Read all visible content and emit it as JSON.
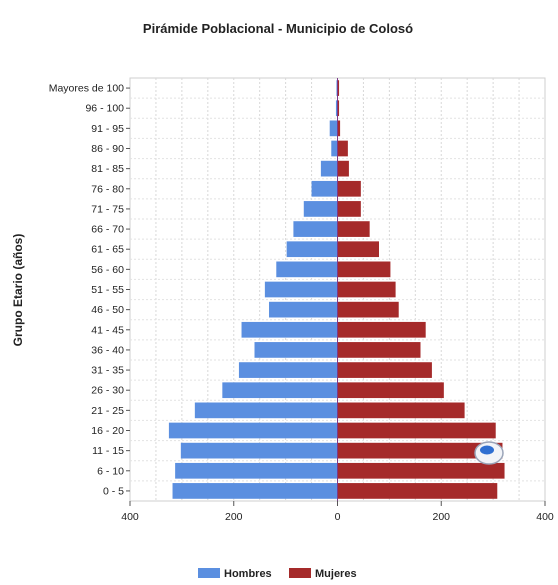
{
  "chart_data": {
    "type": "bar",
    "orientation": "horizontal",
    "title": "Pirámide Poblacional - Municipio de Colosó",
    "xlabel": "",
    "ylabel": "Grupo Etario (años)",
    "xlim": [
      -400,
      400
    ],
    "xticks": [
      -400,
      -200,
      0,
      200,
      400
    ],
    "xtick_labels": [
      "400",
      "200",
      "0",
      "200",
      "400"
    ],
    "grid": true,
    "legend_position": "bottom",
    "categories": [
      "0 - 5",
      "6 - 10",
      "11 - 15",
      "16 - 20",
      "21 - 25",
      "26 - 30",
      "31 - 35",
      "36 - 40",
      "41 - 45",
      "46 - 50",
      "51 - 55",
      "56 - 60",
      "61 - 65",
      "66 - 70",
      "71 - 75",
      "76 - 80",
      "81 - 85",
      "86 - 90",
      "91 - 95",
      "96 - 100",
      "Mayores de 100"
    ],
    "series": [
      {
        "name": "Hombres",
        "color": "#5b8fe0",
        "values": [
          318,
          313,
          302,
          325,
          275,
          222,
          190,
          160,
          185,
          132,
          140,
          118,
          98,
          85,
          65,
          50,
          32,
          12,
          15,
          3,
          2
        ]
      },
      {
        "name": "Mujeres",
        "color": "#a52a2a",
        "values": [
          308,
          322,
          318,
          305,
          245,
          205,
          182,
          160,
          170,
          118,
          112,
          102,
          80,
          62,
          45,
          45,
          22,
          20,
          5,
          3,
          3
        ]
      }
    ]
  }
}
